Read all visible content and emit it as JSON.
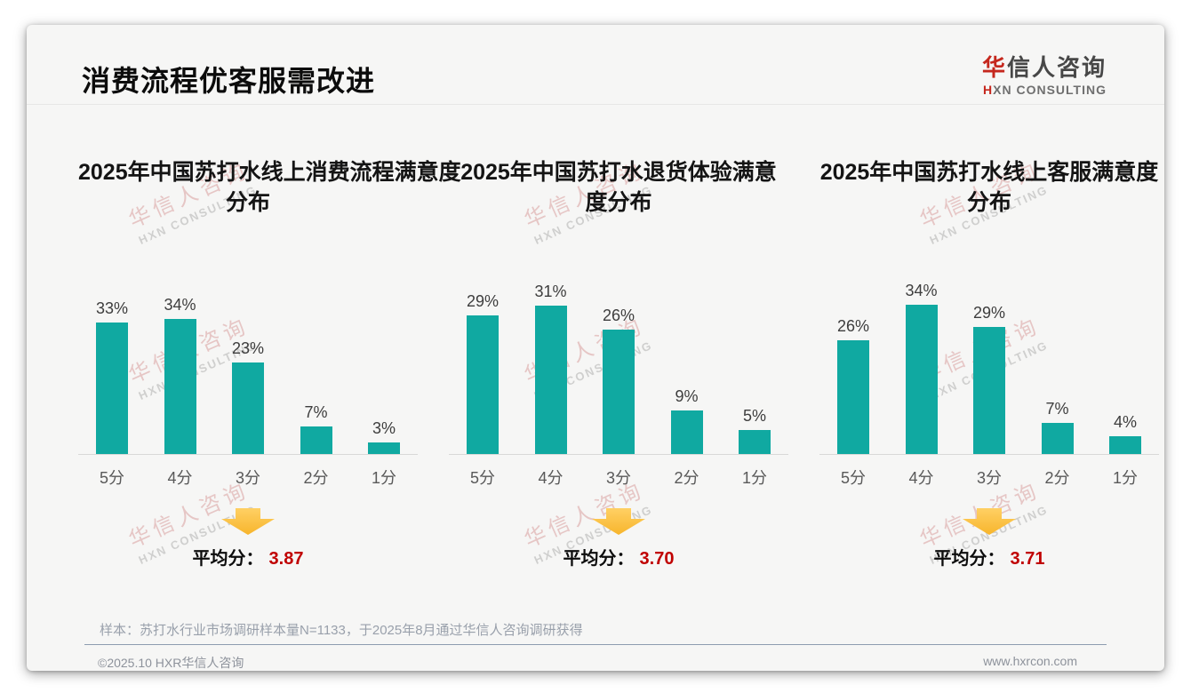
{
  "slide": {
    "title": "消费流程优客服需改进",
    "logo": {
      "zh_accent": "华",
      "zh_rest": "信人咨询",
      "en_accent": "H",
      "en_rest": "XN CONSULTING"
    },
    "watermark": {
      "zh": "华信人咨询",
      "en": "HXN CONSULTING"
    },
    "average_label": "平均分：",
    "note": "样本：苏打水行业市场调研样本量N=1133，于2025年8月通过华信人咨询调研获得",
    "footer": {
      "left": "©2025.10 HXR华信人咨询",
      "right": "www.hxrcon.com"
    },
    "colors": {
      "bar_teal": "#10A9A1",
      "average_red": "#C00000",
      "arrow_yellow_top": "#FFD064",
      "arrow_yellow_bottom": "#F7B52C",
      "logo_red": "#C5271D"
    }
  },
  "chart_data": [
    {
      "type": "bar",
      "title": "2025年中国苏打水线上消费流程满意度分布",
      "title_lines": [
        "2025年中国苏打水线上消费流程满意度",
        "分布"
      ],
      "categories": [
        "5分",
        "4分",
        "3分",
        "2分",
        "1分"
      ],
      "values": [
        33,
        34,
        23,
        7,
        3
      ],
      "unit": "%",
      "average": "3.87",
      "grid": false,
      "legend": "none"
    },
    {
      "type": "bar",
      "title": "2025年中国苏打水退货体验满意度分布",
      "title_lines": [
        "2025年中国苏打水退货体验满意",
        "度分布"
      ],
      "categories": [
        "5分",
        "4分",
        "3分",
        "2分",
        "1分"
      ],
      "values": [
        29,
        31,
        26,
        9,
        5
      ],
      "unit": "%",
      "average": "3.70",
      "grid": false,
      "legend": "none"
    },
    {
      "type": "bar",
      "title": "2025年中国苏打水线上客服满意度分布",
      "title_lines": [
        "2025年中国苏打水线上客服满意度",
        "分布"
      ],
      "categories": [
        "5分",
        "4分",
        "3分",
        "2分",
        "1分"
      ],
      "values": [
        26,
        34,
        29,
        7,
        4
      ],
      "unit": "%",
      "average": "3.71",
      "grid": false,
      "legend": "none"
    }
  ]
}
